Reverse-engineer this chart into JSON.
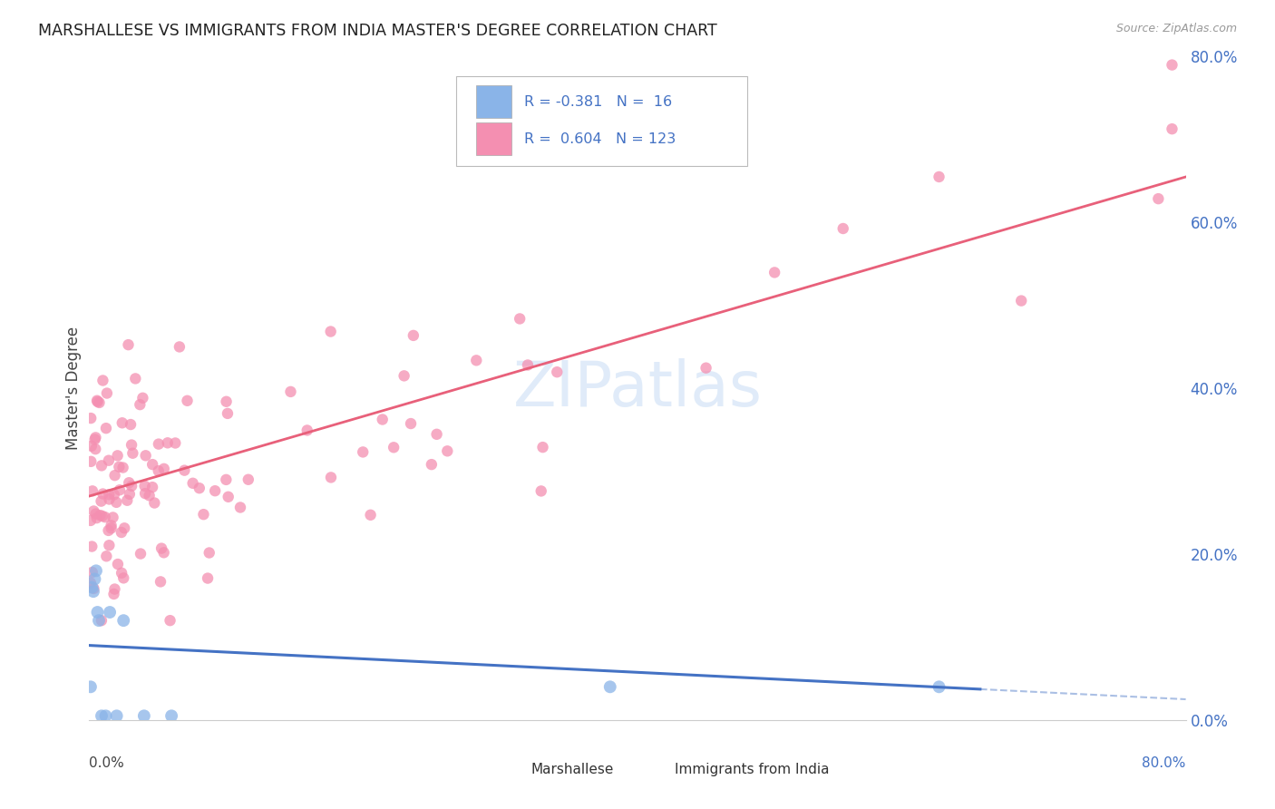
{
  "title": "MARSHALLESE VS IMMIGRANTS FROM INDIA MASTER'S DEGREE CORRELATION CHART",
  "source": "Source: ZipAtlas.com",
  "ylabel": "Master's Degree",
  "marshallese_color": "#8ab4e8",
  "india_color": "#f48fb1",
  "line_marshallese": "#4472c4",
  "line_india": "#e8607a",
  "background_color": "#ffffff",
  "grid_color": "#dddddd",
  "right_axis_color": "#4472c4",
  "xlim": [
    0.0,
    0.8
  ],
  "ylim": [
    0.0,
    0.8
  ],
  "india_line_x0": 0.0,
  "india_line_y0": 0.27,
  "india_line_x1": 0.8,
  "india_line_y1": 0.655,
  "marsh_line_x0": 0.0,
  "marsh_line_y0": 0.09,
  "marsh_line_x1": 0.8,
  "marsh_line_y1": 0.025,
  "right_yticks": [
    0.0,
    0.2,
    0.4,
    0.6,
    0.8
  ],
  "right_yticklabels": [
    "0.0%",
    "20.0%",
    "40.0%",
    "60.0%",
    "80.0%"
  ]
}
